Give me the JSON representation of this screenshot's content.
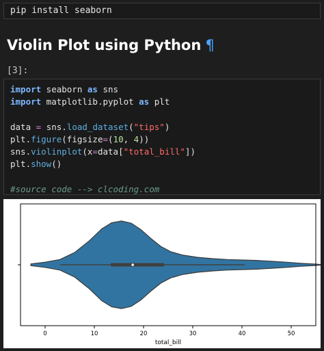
{
  "install_cell": {
    "code": "pip install seaborn"
  },
  "heading": {
    "text": "Violin Plot using Python",
    "anchor": "¶"
  },
  "prompt": "[3]:",
  "code_cell": {
    "lines": [
      [
        {
          "t": "import",
          "c": "kw"
        },
        {
          "t": " seaborn ",
          "c": ""
        },
        {
          "t": "as",
          "c": "kw"
        },
        {
          "t": " sns",
          "c": ""
        }
      ],
      [
        {
          "t": "import",
          "c": "kw"
        },
        {
          "t": " matplotlib.pyplot ",
          "c": ""
        },
        {
          "t": "as",
          "c": "kw"
        },
        {
          "t": " plt",
          "c": ""
        }
      ],
      [],
      [
        {
          "t": "data ",
          "c": ""
        },
        {
          "t": "=",
          "c": "op"
        },
        {
          "t": " sns.",
          "c": ""
        },
        {
          "t": "load_dataset",
          "c": "fn"
        },
        {
          "t": "(",
          "c": ""
        },
        {
          "t": "\"tips\"",
          "c": "str"
        },
        {
          "t": ")",
          "c": ""
        }
      ],
      [
        {
          "t": "plt.",
          "c": ""
        },
        {
          "t": "figure",
          "c": "fn"
        },
        {
          "t": "(figsize",
          "c": ""
        },
        {
          "t": "=",
          "c": "op"
        },
        {
          "t": "(",
          "c": ""
        },
        {
          "t": "10",
          "c": "num"
        },
        {
          "t": ", ",
          "c": ""
        },
        {
          "t": "4",
          "c": "num"
        },
        {
          "t": "))",
          "c": ""
        }
      ],
      [
        {
          "t": "sns.",
          "c": ""
        },
        {
          "t": "violinplot",
          "c": "fn"
        },
        {
          "t": "(x",
          "c": ""
        },
        {
          "t": "=",
          "c": "op"
        },
        {
          "t": "data[",
          "c": ""
        },
        {
          "t": "\"total_bill\"",
          "c": "str"
        },
        {
          "t": "])",
          "c": ""
        }
      ],
      [
        {
          "t": "plt.",
          "c": ""
        },
        {
          "t": "show",
          "c": "fn"
        },
        {
          "t": "()",
          "c": ""
        }
      ],
      [],
      [
        {
          "t": "#source code --> clcoding.com",
          "c": "cm"
        }
      ]
    ]
  },
  "chart_data": {
    "type": "violin",
    "title": "",
    "xlabel": "total_bill",
    "ylabel": "",
    "xlim": [
      -5,
      55
    ],
    "xticks": [
      0,
      10,
      20,
      30,
      40,
      50
    ],
    "xtick_labels": [
      "0",
      "10",
      "20",
      "30",
      "40",
      "50"
    ],
    "density_range": [
      -2.9,
      56.7
    ],
    "whisker": [
      3.07,
      40.55
    ],
    "quartiles": [
      13.35,
      24.13
    ],
    "median": 17.8,
    "color": "#3274a1",
    "density_profile": [
      [
        -2.9,
        0.02
      ],
      [
        0.0,
        0.06
      ],
      [
        3.0,
        0.12
      ],
      [
        6.0,
        0.28
      ],
      [
        9.0,
        0.55
      ],
      [
        11.5,
        0.82
      ],
      [
        13.5,
        0.96
      ],
      [
        15.5,
        1.0
      ],
      [
        17.5,
        0.95
      ],
      [
        19.5,
        0.8
      ],
      [
        21.5,
        0.6
      ],
      [
        23.5,
        0.42
      ],
      [
        25.5,
        0.3
      ],
      [
        28.0,
        0.22
      ],
      [
        31.0,
        0.17
      ],
      [
        34.0,
        0.14
      ],
      [
        37.0,
        0.12
      ],
      [
        40.0,
        0.11
      ],
      [
        43.0,
        0.1
      ],
      [
        46.0,
        0.08
      ],
      [
        49.0,
        0.06
      ],
      [
        52.0,
        0.035
      ],
      [
        55.0,
        0.015
      ],
      [
        56.7,
        0.0
      ]
    ]
  }
}
